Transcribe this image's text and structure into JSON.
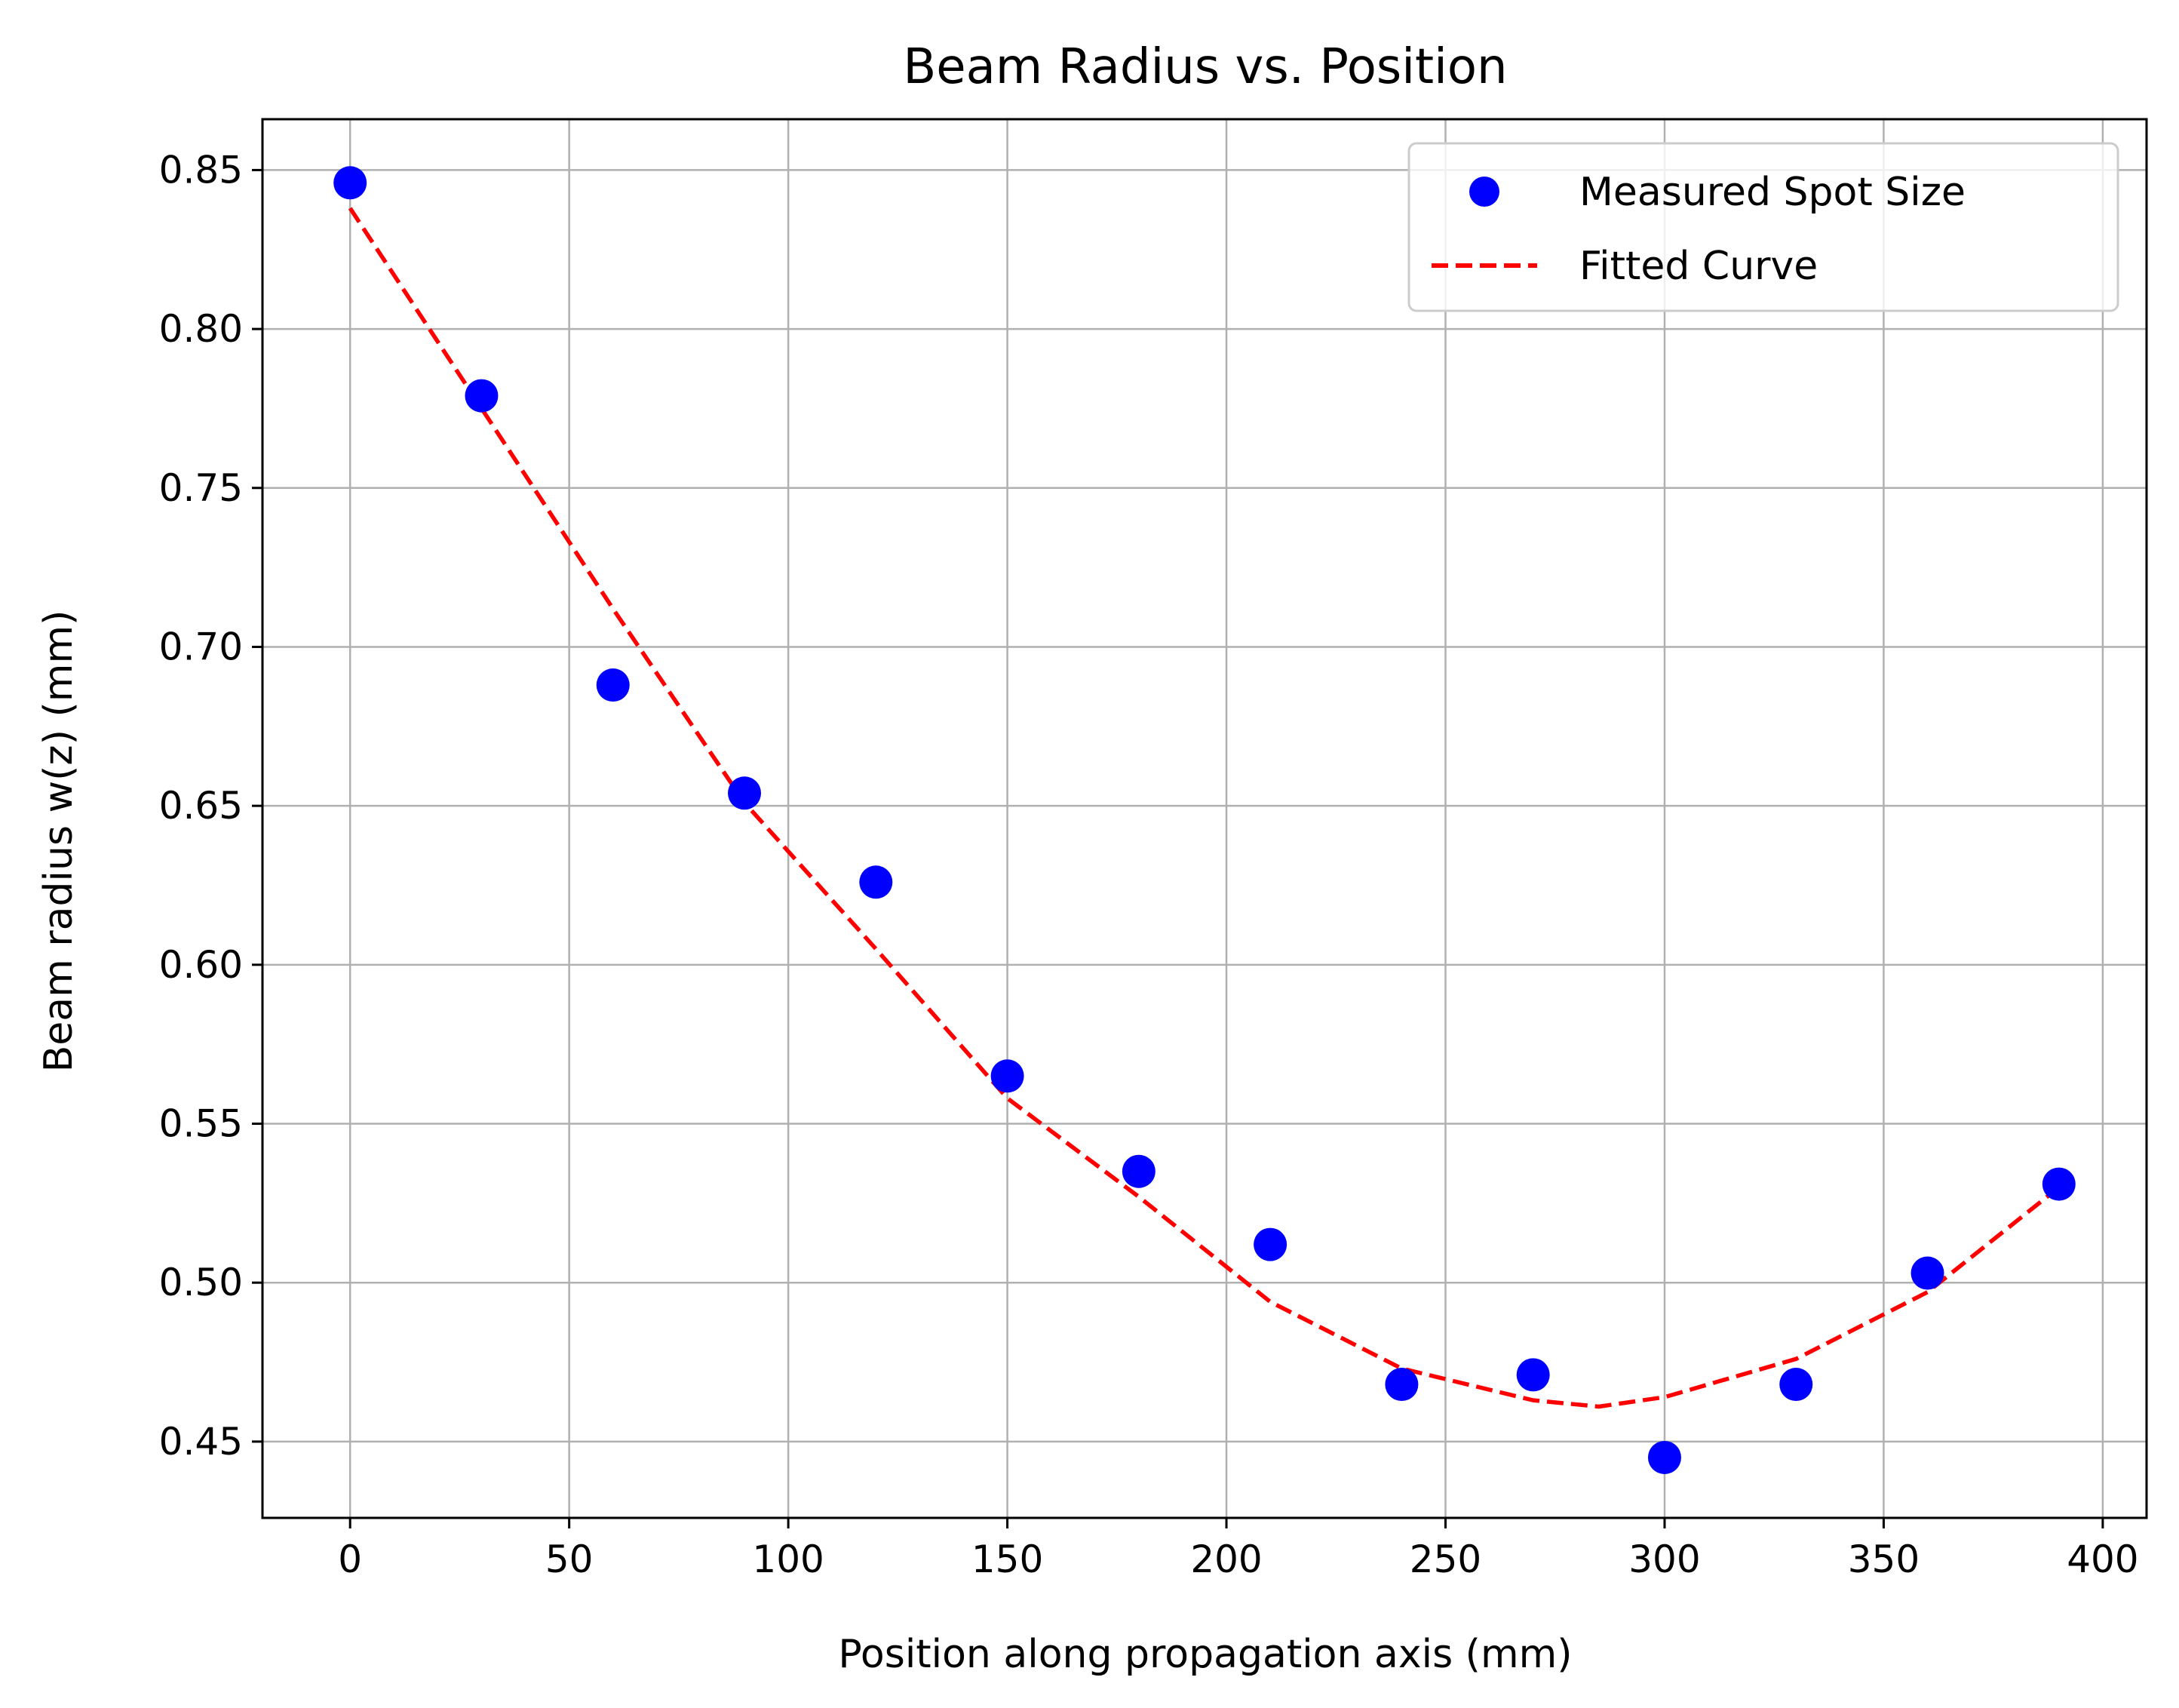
{
  "chart_data": {
    "type": "scatter",
    "title": "Beam Radius vs. Position",
    "xlabel": "Position along propagation axis (mm)",
    "ylabel": "Beam radius w(z) (mm)",
    "xlim": [
      -20,
      410
    ],
    "ylim": [
      0.426,
      0.866
    ],
    "xticks": [
      0,
      50,
      100,
      150,
      200,
      250,
      300,
      350,
      400
    ],
    "yticks": [
      0.45,
      0.5,
      0.55,
      0.6,
      0.65,
      0.7,
      0.75,
      0.8,
      0.85
    ],
    "xtick_labels": [
      "0",
      "50",
      "100",
      "150",
      "200",
      "250",
      "300",
      "350",
      "400"
    ],
    "ytick_labels": [
      "0.45",
      "0.50",
      "0.55",
      "0.60",
      "0.65",
      "0.70",
      "0.75",
      "0.80",
      "0.85"
    ],
    "grid": true,
    "legend_position": "top-right",
    "series": [
      {
        "name": "Measured Spot Size",
        "kind": "scatter",
        "color": "#0000ff",
        "x": [
          0,
          30,
          60,
          90,
          120,
          150,
          180,
          210,
          240,
          270,
          300,
          330,
          360,
          390
        ],
        "y": [
          0.846,
          0.779,
          0.688,
          0.654,
          0.626,
          0.565,
          0.535,
          0.512,
          0.468,
          0.471,
          0.445,
          0.468,
          0.503,
          0.531
        ]
      },
      {
        "name": "Fitted Curve",
        "kind": "line",
        "style": "dashed",
        "color": "#ff0000",
        "x": [
          0,
          30,
          60,
          90,
          120,
          150,
          180,
          210,
          240,
          270,
          285,
          300,
          330,
          360,
          390
        ],
        "y": [
          0.838,
          0.775,
          0.712,
          0.651,
          0.605,
          0.558,
          0.527,
          0.494,
          0.473,
          0.463,
          0.461,
          0.464,
          0.476,
          0.497,
          0.53
        ]
      }
    ]
  }
}
